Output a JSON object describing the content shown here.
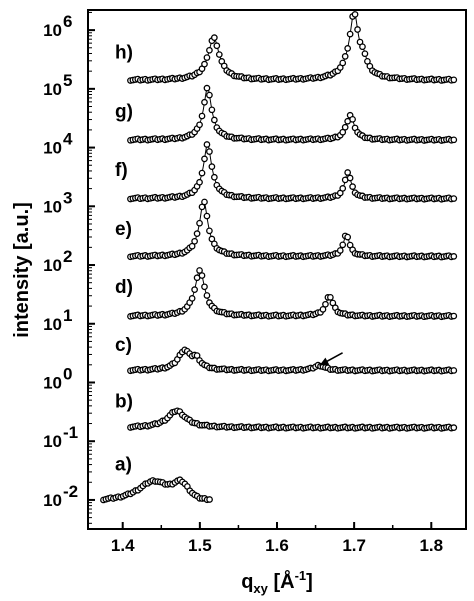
{
  "chart_data": {
    "type": "scatter",
    "title": "",
    "xlabel": "q",
    "xlabel_sub": "xy",
    "xlabel_unit_open": " [Å",
    "xlabel_unit_sup": "-1",
    "xlabel_unit_close": "]",
    "ylabel": "intensity [a.u.]",
    "y_scale": "log",
    "xlim": [
      1.355,
      1.845
    ],
    "ylim": [
      0.0032,
      2200000
    ],
    "x_ticks": [
      {
        "value": 1.4,
        "label": "1.4"
      },
      {
        "value": 1.5,
        "label": "1.5"
      },
      {
        "value": 1.6,
        "label": "1.6"
      },
      {
        "value": 1.7,
        "label": "1.7"
      },
      {
        "value": 1.8,
        "label": "1.8"
      }
    ],
    "y_ticks": [
      {
        "value": 0.01,
        "base": "10",
        "exp": "-2"
      },
      {
        "value": 0.1,
        "base": "10",
        "exp": "-1"
      },
      {
        "value": 1,
        "base": "10",
        "exp": "0"
      },
      {
        "value": 10,
        "base": "10",
        "exp": "1"
      },
      {
        "value": 100,
        "base": "10",
        "exp": "2"
      },
      {
        "value": 1000,
        "base": "10",
        "exp": "3"
      },
      {
        "value": 10000,
        "base": "10",
        "exp": "4"
      },
      {
        "value": 100000,
        "base": "10",
        "exp": "5"
      },
      {
        "value": 1000000,
        "base": "10",
        "exp": "6"
      }
    ],
    "marker": "open-circle",
    "grid": false,
    "annotation": {
      "type": "arrow",
      "from": [
        1.685,
        3.2
      ],
      "to": [
        1.655,
        1.95
      ]
    },
    "series": [
      {
        "name": "a)",
        "label_pos": [
          1.39,
          0.042
        ],
        "baseline": 0.0092,
        "xrange": [
          1.375,
          1.515
        ],
        "peaks": [
          {
            "center": 1.44,
            "height": 0.011,
            "width": 0.02
          },
          {
            "center": 1.475,
            "height": 0.01,
            "width": 0.012
          },
          {
            "center": 1.495,
            "height": -0.0015,
            "width": 0.015
          }
        ]
      },
      {
        "name": "b)",
        "label_pos": [
          1.39,
          0.49
        ],
        "baseline": 0.17,
        "xrange": [
          1.41,
          1.83
        ],
        "peaks": [
          {
            "center": 1.47,
            "height": 0.16,
            "width": 0.012
          }
        ]
      },
      {
        "name": "c)",
        "label_pos": [
          1.39,
          4.5
        ],
        "baseline": 1.6,
        "xrange": [
          1.41,
          1.83
        ],
        "peaks": [
          {
            "center": 1.48,
            "height": 1.9,
            "width": 0.008
          },
          {
            "center": 1.495,
            "height": 0.9,
            "width": 0.006
          },
          {
            "center": 1.655,
            "height": 0.35,
            "width": 0.008
          }
        ]
      },
      {
        "name": "d)",
        "label_pos": [
          1.39,
          44
        ],
        "baseline": 13.5,
        "xrange": [
          1.41,
          1.83
        ],
        "peaks": [
          {
            "center": 1.5,
            "height": 70,
            "width": 0.005
          },
          {
            "center": 1.668,
            "height": 16,
            "width": 0.005
          }
        ]
      },
      {
        "name": "e)",
        "label_pos": [
          1.39,
          430
        ],
        "baseline": 140,
        "xrange": [
          1.41,
          1.83
        ],
        "peaks": [
          {
            "center": 1.505,
            "height": 1100,
            "width": 0.004
          },
          {
            "center": 1.69,
            "height": 190,
            "width": 0.004
          }
        ]
      },
      {
        "name": "f)",
        "label_pos": [
          1.39,
          4300
        ],
        "baseline": 1350,
        "xrange": [
          1.41,
          1.83
        ],
        "peaks": [
          {
            "center": 1.51,
            "height": 10000,
            "width": 0.004
          },
          {
            "center": 1.692,
            "height": 2500,
            "width": 0.004
          }
        ]
      },
      {
        "name": "g)",
        "label_pos": [
          1.39,
          43000
        ],
        "baseline": 13500,
        "xrange": [
          1.41,
          1.83
        ],
        "peaks": [
          {
            "center": 1.51,
            "height": 90000,
            "width": 0.004
          },
          {
            "center": 1.695,
            "height": 22000,
            "width": 0.005
          }
        ]
      },
      {
        "name": "h)",
        "label_pos": [
          1.39,
          430000
        ],
        "baseline": 140000,
        "xrange": [
          1.41,
          1.83
        ],
        "peaks": [
          {
            "center": 1.518,
            "height": 600000,
            "width": 0.006
          },
          {
            "center": 1.7,
            "height": 1900000,
            "width": 0.004
          },
          {
            "center": 1.712,
            "height": 150000,
            "width": 0.004
          }
        ]
      }
    ]
  }
}
